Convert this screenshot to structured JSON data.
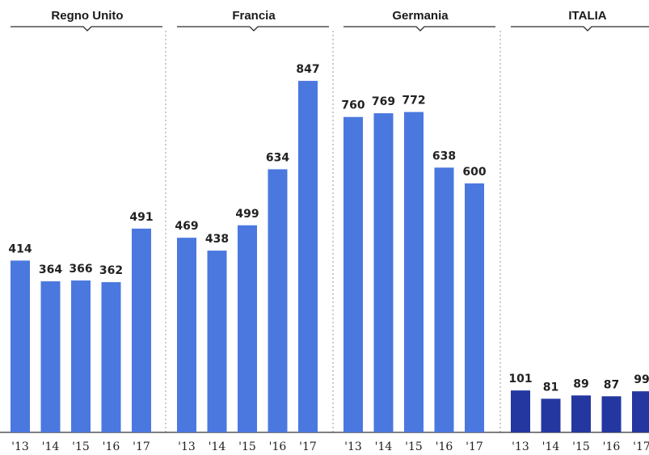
{
  "chart_data": {
    "type": "bar",
    "categories": [
      "'13",
      "'14",
      "'15",
      "'16",
      "'17"
    ],
    "ylim": [
      0,
      900
    ],
    "panels": [
      {
        "title": "Regno Unito",
        "color": "#4a78df",
        "values": [
          414,
          364,
          366,
          362,
          491
        ]
      },
      {
        "title": "Francia",
        "color": "#4a78df",
        "values": [
          469,
          438,
          499,
          634,
          847
        ]
      },
      {
        "title": "Germania",
        "color": "#4a78df",
        "values": [
          760,
          769,
          772,
          638,
          600
        ]
      },
      {
        "title": "ITALIA",
        "color": "#2437a0",
        "values": [
          101,
          81,
          89,
          87,
          99
        ]
      }
    ]
  }
}
